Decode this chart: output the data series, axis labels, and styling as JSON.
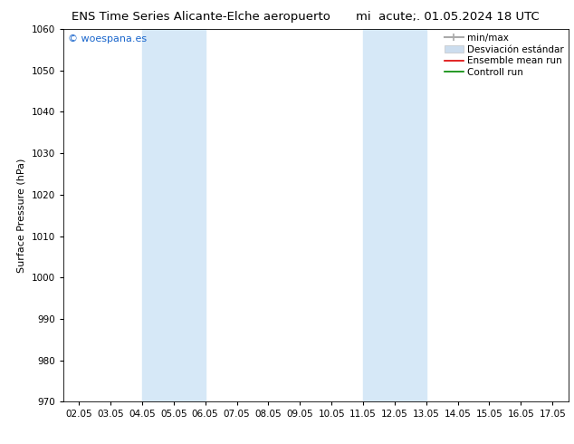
{
  "title_left": "ENS Time Series Alicante-Elche aeropuerto",
  "title_right": "mi  acute;. 01.05.2024 18 UTC",
  "ylabel": "Surface Pressure (hPa)",
  "ylim": [
    970,
    1060
  ],
  "yticks": [
    970,
    980,
    990,
    1000,
    1010,
    1020,
    1030,
    1040,
    1050,
    1060
  ],
  "xlim": [
    0,
    15
  ],
  "xtick_labels": [
    "02.05",
    "03.05",
    "04.05",
    "05.05",
    "06.05",
    "07.05",
    "08.05",
    "09.05",
    "10.05",
    "11.05",
    "12.05",
    "13.05",
    "14.05",
    "15.05",
    "16.05",
    "17.05"
  ],
  "xtick_positions": [
    0,
    1,
    2,
    3,
    4,
    5,
    6,
    7,
    8,
    9,
    10,
    11,
    12,
    13,
    14,
    15
  ],
  "shaded_bands": [
    {
      "x_start": 2,
      "x_end": 4
    },
    {
      "x_start": 9,
      "x_end": 11
    }
  ],
  "shade_color": "#d6e8f7",
  "background_color": "#ffffff",
  "watermark_text": "© woespana.es",
  "watermark_color": "#1a66cc",
  "legend_entries": [
    {
      "label": "min/max",
      "color": "#aaaaaa",
      "lw": 1.5
    },
    {
      "label": "Desviación estándar",
      "color": "#ccddee",
      "lw": 8
    },
    {
      "label": "Ensemble mean run",
      "color": "#dd0000",
      "lw": 1.2
    },
    {
      "label": "Controll run",
      "color": "#008800",
      "lw": 1.2
    }
  ],
  "title_fontsize": 9.5,
  "axis_fontsize": 8,
  "tick_fontsize": 7.5,
  "legend_fontsize": 7.5
}
